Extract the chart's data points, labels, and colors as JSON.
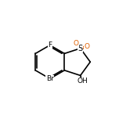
{
  "bg_color": "#ffffff",
  "bond_color": "#000000",
  "atom_colors": {
    "F": "#000000",
    "Br": "#000000",
    "S": "#000000",
    "O": "#e06000",
    "OH": "#000000"
  },
  "figsize": [
    1.52,
    1.52
  ],
  "dpi": 100
}
